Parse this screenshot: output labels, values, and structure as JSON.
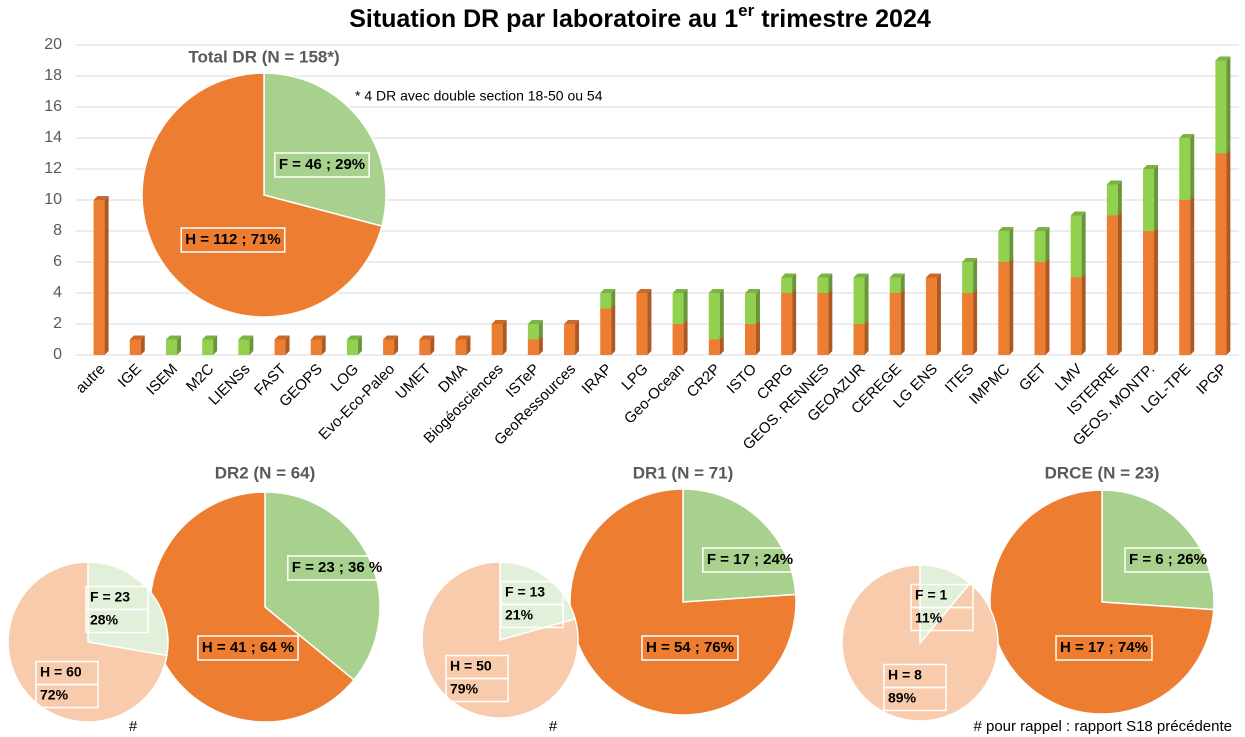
{
  "title_parts": [
    "Situation DR par laboratoire au 1",
    "er",
    " trimestre 2024"
  ],
  "footnote": "# pour rappel : rapport S18 précédente",
  "chart_data": [
    {
      "type": "bar",
      "stacked": true,
      "grid": true,
      "categories": [
        "autre",
        "IGE",
        "ISEM",
        "M2C",
        "LIENSs",
        "FAST",
        "GEOPS",
        "LOG",
        "Evo-Eco-Paleo",
        "UMET",
        "DMA",
        "Biogéosciences",
        "ISTeP",
        "GeoRessources",
        "IRAP",
        "LPG",
        "Geo-Ocean",
        "CR2P",
        "ISTO",
        "CRPG",
        "GEOS. RENNES",
        "GEOAZUR",
        "CEREGE",
        "LG ENS",
        "ITES",
        "IMPMC",
        "GET",
        "LMV",
        "ISTERRE",
        "GEOS. MONTP.",
        "LGL-TPE",
        "IPGP"
      ],
      "series": [
        {
          "color": "#ed7d31",
          "values": [
            10,
            1,
            0,
            0,
            0,
            1,
            1,
            0,
            1,
            1,
            1,
            2,
            1,
            2,
            3,
            4,
            2,
            1,
            2,
            4,
            4,
            2,
            4,
            5,
            4,
            6,
            6,
            5,
            9,
            8,
            10,
            13
          ]
        },
        {
          "color": "#92d050",
          "values": [
            0,
            0,
            1,
            1,
            1,
            0,
            0,
            1,
            0,
            0,
            0,
            0,
            1,
            0,
            1,
            0,
            2,
            3,
            2,
            1,
            1,
            3,
            1,
            0,
            2,
            2,
            2,
            4,
            2,
            4,
            4,
            6
          ]
        }
      ],
      "ylim": [
        0,
        20
      ],
      "yticks": [
        0,
        2,
        4,
        6,
        8,
        10,
        12,
        14,
        16,
        18,
        20
      ]
    },
    {
      "type": "pie",
      "title": "Total DR (N = 158*)",
      "annotation": "* 4 DR avec double section 18-50 ou 54",
      "values": [
        46,
        112
      ],
      "colors": [
        "#a9d18e",
        "#ed7d31"
      ],
      "value_labels": [
        [
          "F = 46 ; 29%"
        ],
        [
          "H = 112 ; 71%"
        ]
      ]
    },
    {
      "type": "pie",
      "title": "DR2 (N = 64)",
      "values": [
        23,
        41
      ],
      "colors": [
        "#a9d18e",
        "#ed7d31"
      ],
      "value_labels": [
        [
          "F = 23 ; 36 %"
        ],
        [
          "H = 41 ; 64 %"
        ]
      ]
    },
    {
      "type": "pie",
      "note": "#",
      "values": [
        23,
        60
      ],
      "colors": [
        "#e2efd9",
        "#f8cbad"
      ],
      "value_labels": [
        [
          "F = 23",
          "28%"
        ],
        [
          "H = 60",
          "72%"
        ]
      ]
    },
    {
      "type": "pie",
      "title": "DR1 (N = 71)",
      "values": [
        17,
        54
      ],
      "colors": [
        "#a9d18e",
        "#ed7d31"
      ],
      "value_labels": [
        [
          "F = 17 ; 24%"
        ],
        [
          "H = 54 ; 76%"
        ]
      ]
    },
    {
      "type": "pie",
      "note": "#",
      "values": [
        13,
        50
      ],
      "colors": [
        "#e2efd9",
        "#f8cbad"
      ],
      "value_labels": [
        [
          "F = 13",
          "21%"
        ],
        [
          "H = 50",
          "79%"
        ]
      ]
    },
    {
      "type": "pie",
      "title": "DRCE (N = 23)",
      "values": [
        6,
        17
      ],
      "colors": [
        "#a9d18e",
        "#ed7d31"
      ],
      "value_labels": [
        [
          "F = 6 ; 26%"
        ],
        [
          "H = 17 ; 74%"
        ]
      ]
    },
    {
      "type": "pie",
      "values": [
        1,
        8
      ],
      "colors": [
        "#e2efd9",
        "#f8cbad"
      ],
      "value_labels": [
        [
          "F = 1",
          "11%"
        ],
        [
          "H = 8",
          "89%"
        ]
      ]
    }
  ]
}
